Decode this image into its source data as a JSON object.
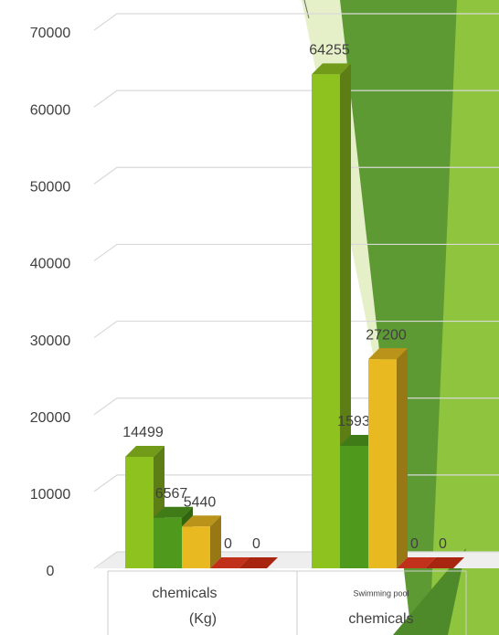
{
  "chart_data": {
    "type": "bar3d",
    "categories": [
      [
        "chemicals",
        "(Kg)"
      ],
      [
        "Swimming pool",
        "chemicals"
      ]
    ],
    "series": [
      {
        "color": "#8dc21f",
        "values": [
          14499,
          64255
        ]
      },
      {
        "color": "#4f9a1c",
        "values": [
          6567,
          15930
        ]
      },
      {
        "color": "#e8b921",
        "values": [
          5440,
          27200
        ]
      },
      {
        "color": "#c0301a",
        "values": [
          0,
          0
        ]
      },
      {
        "color": "#a8260f",
        "values": [
          0,
          0
        ]
      }
    ],
    "ylim": [
      0,
      70000
    ],
    "yticks": [
      0,
      10000,
      20000,
      30000,
      40000,
      50000,
      60000,
      70000
    ],
    "grid": true
  }
}
